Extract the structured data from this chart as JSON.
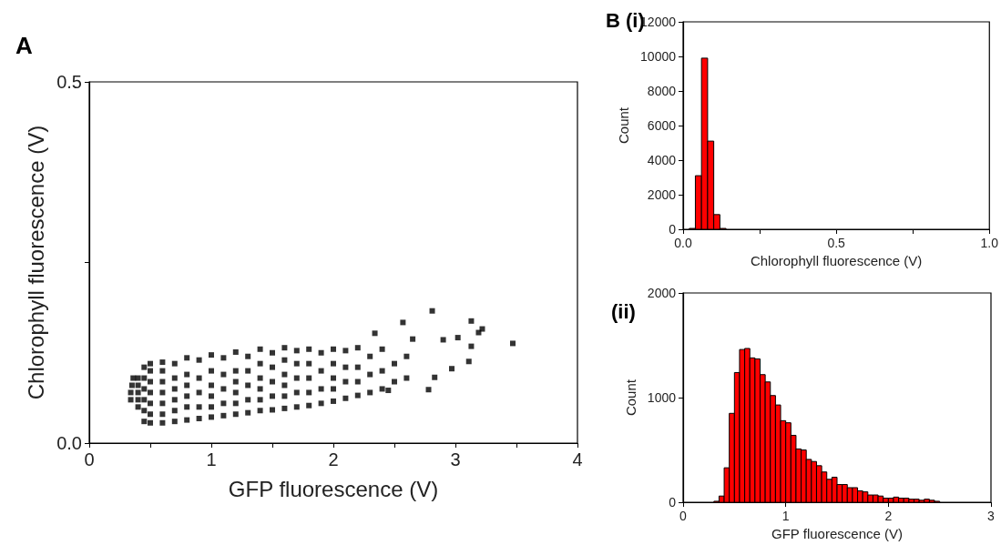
{
  "chart_data": [
    {
      "type": "scatter",
      "title": "A",
      "xlabel": "GFP fluorescence (V)",
      "ylabel": "Chlorophyll fluorescence (V)",
      "marker": "square",
      "grid": false,
      "xlim": [
        0,
        4
      ],
      "xticks": [
        0,
        {
          "value": 0.5,
          "label": null
        },
        1,
        {
          "value": 1.5,
          "label": null
        },
        2,
        {
          "value": 2.5,
          "label": null
        },
        3,
        {
          "value": 3.5,
          "label": null
        },
        4
      ],
      "ylim": [
        0,
        0.5
      ],
      "yticks": [
        {
          "value": 0,
          "label": "0.0"
        },
        {
          "value": 0.25,
          "label": null
        },
        {
          "value": 0.5,
          "label": "0.5"
        }
      ],
      "series": [
        {
          "color": "#000000",
          "x": [
            0.34,
            0.34,
            0.35,
            0.36,
            0.4,
            0.4,
            0.4,
            0.4,
            0.4,
            0.45,
            0.45,
            0.45,
            0.45,
            0.45,
            0.45,
            0.5,
            0.5,
            0.5,
            0.5,
            0.5,
            0.5,
            0.5,
            0.6,
            0.6,
            0.6,
            0.6,
            0.6,
            0.6,
            0.6,
            0.7,
            0.7,
            0.7,
            0.7,
            0.7,
            0.7,
            0.8,
            0.8,
            0.8,
            0.8,
            0.8,
            0.8,
            0.9,
            0.9,
            0.9,
            0.9,
            0.9,
            1.0,
            1.0,
            1.0,
            1.0,
            1.0,
            1.0,
            1.1,
            1.1,
            1.1,
            1.1,
            1.1,
            1.2,
            1.2,
            1.2,
            1.2,
            1.2,
            1.2,
            1.3,
            1.3,
            1.3,
            1.3,
            1.3,
            1.4,
            1.4,
            1.4,
            1.4,
            1.4,
            1.4,
            1.5,
            1.5,
            1.5,
            1.5,
            1.5,
            1.6,
            1.6,
            1.6,
            1.6,
            1.6,
            1.6,
            1.7,
            1.7,
            1.7,
            1.7,
            1.7,
            1.8,
            1.8,
            1.8,
            1.8,
            1.8,
            1.9,
            1.9,
            1.9,
            1.9,
            2.0,
            2.0,
            2.0,
            2.0,
            2.0,
            2.1,
            2.1,
            2.1,
            2.1,
            2.2,
            2.2,
            2.2,
            2.2,
            2.3,
            2.3,
            2.3,
            2.4,
            2.4,
            2.4,
            2.5,
            2.5,
            2.6,
            2.6,
            2.57,
            2.34,
            2.45,
            2.65,
            2.78,
            2.81,
            2.83,
            2.9,
            2.97,
            3.02,
            3.11,
            3.13,
            3.13,
            3.19,
            3.22,
            3.47
          ],
          "values": [
            0.06,
            0.07,
            0.08,
            0.09,
            0.05,
            0.06,
            0.07,
            0.08,
            0.09,
            0.03,
            0.045,
            0.06,
            0.075,
            0.09,
            0.105,
            0.028,
            0.04,
            0.055,
            0.07,
            0.085,
            0.1,
            0.11,
            0.028,
            0.04,
            0.055,
            0.07,
            0.085,
            0.1,
            0.112,
            0.03,
            0.045,
            0.06,
            0.075,
            0.09,
            0.11,
            0.032,
            0.05,
            0.065,
            0.08,
            0.095,
            0.118,
            0.034,
            0.05,
            0.07,
            0.09,
            0.115,
            0.036,
            0.05,
            0.065,
            0.08,
            0.1,
            0.122,
            0.038,
            0.055,
            0.075,
            0.095,
            0.118,
            0.04,
            0.055,
            0.07,
            0.085,
            0.1,
            0.126,
            0.042,
            0.06,
            0.08,
            0.1,
            0.12,
            0.045,
            0.06,
            0.075,
            0.09,
            0.11,
            0.13,
            0.046,
            0.065,
            0.085,
            0.105,
            0.125,
            0.048,
            0.065,
            0.08,
            0.095,
            0.115,
            0.132,
            0.05,
            0.07,
            0.09,
            0.11,
            0.128,
            0.052,
            0.07,
            0.09,
            0.11,
            0.13,
            0.055,
            0.075,
            0.1,
            0.125,
            0.058,
            0.075,
            0.09,
            0.11,
            0.13,
            0.062,
            0.085,
            0.105,
            0.128,
            0.066,
            0.085,
            0.105,
            0.132,
            0.07,
            0.095,
            0.12,
            0.075,
            0.1,
            0.13,
            0.085,
            0.11,
            0.09,
            0.12,
            0.167,
            0.152,
            0.073,
            0.144,
            0.074,
            0.183,
            0.091,
            0.143,
            0.103,
            0.146,
            0.113,
            0.134,
            0.169,
            0.153,
            0.158,
            0.138
          ]
        }
      ]
    },
    {
      "type": "histogram",
      "title": "B (i)",
      "xlabel": "Chlorophyll fluorescence (V)",
      "ylabel": "Count",
      "grid": false,
      "xlim": [
        0,
        1
      ],
      "xticks": [
        {
          "value": 0,
          "label": "0.0"
        },
        {
          "value": 0.25,
          "label": null
        },
        {
          "value": 0.5,
          "label": "0.5"
        },
        {
          "value": 0.75,
          "label": null
        },
        {
          "value": 1,
          "label": "1.0"
        }
      ],
      "ylim": [
        0,
        12000
      ],
      "yticks": [
        0,
        2000,
        4000,
        6000,
        8000,
        10000,
        12000
      ],
      "color": "#ff0000",
      "bins": [
        0.02,
        0.04,
        0.06,
        0.08,
        0.1,
        0.12,
        0.14
      ],
      "values": [
        50,
        3100,
        9900,
        5100,
        850,
        50
      ]
    },
    {
      "type": "histogram",
      "title": "(ii)",
      "xlabel": "GFP fluorescence (V)",
      "ylabel": "Count",
      "grid": false,
      "xlim": [
        0,
        3
      ],
      "xticks": [
        0,
        1,
        2,
        3
      ],
      "ylim": [
        0,
        2000
      ],
      "yticks": [
        0,
        1000,
        2000
      ],
      "color": "#ff0000",
      "bins": [
        0.3,
        0.35,
        0.4,
        0.45,
        0.5,
        0.55,
        0.6,
        0.65,
        0.7,
        0.75,
        0.8,
        0.85,
        0.9,
        0.95,
        1.0,
        1.05,
        1.1,
        1.15,
        1.2,
        1.25,
        1.3,
        1.35,
        1.4,
        1.45,
        1.5,
        1.55,
        1.6,
        1.65,
        1.7,
        1.75,
        1.8,
        1.85,
        1.9,
        1.95,
        2.0,
        2.05,
        2.1,
        2.15,
        2.2,
        2.25,
        2.3,
        2.35,
        2.4,
        2.45,
        2.5
      ],
      "values": [
        10,
        60,
        330,
        850,
        1240,
        1460,
        1470,
        1380,
        1370,
        1220,
        1150,
        1020,
        930,
        780,
        760,
        640,
        510,
        500,
        410,
        390,
        350,
        290,
        220,
        240,
        170,
        170,
        140,
        140,
        110,
        100,
        70,
        70,
        60,
        40,
        40,
        50,
        40,
        40,
        30,
        30,
        20,
        30,
        20,
        10
      ]
    }
  ]
}
